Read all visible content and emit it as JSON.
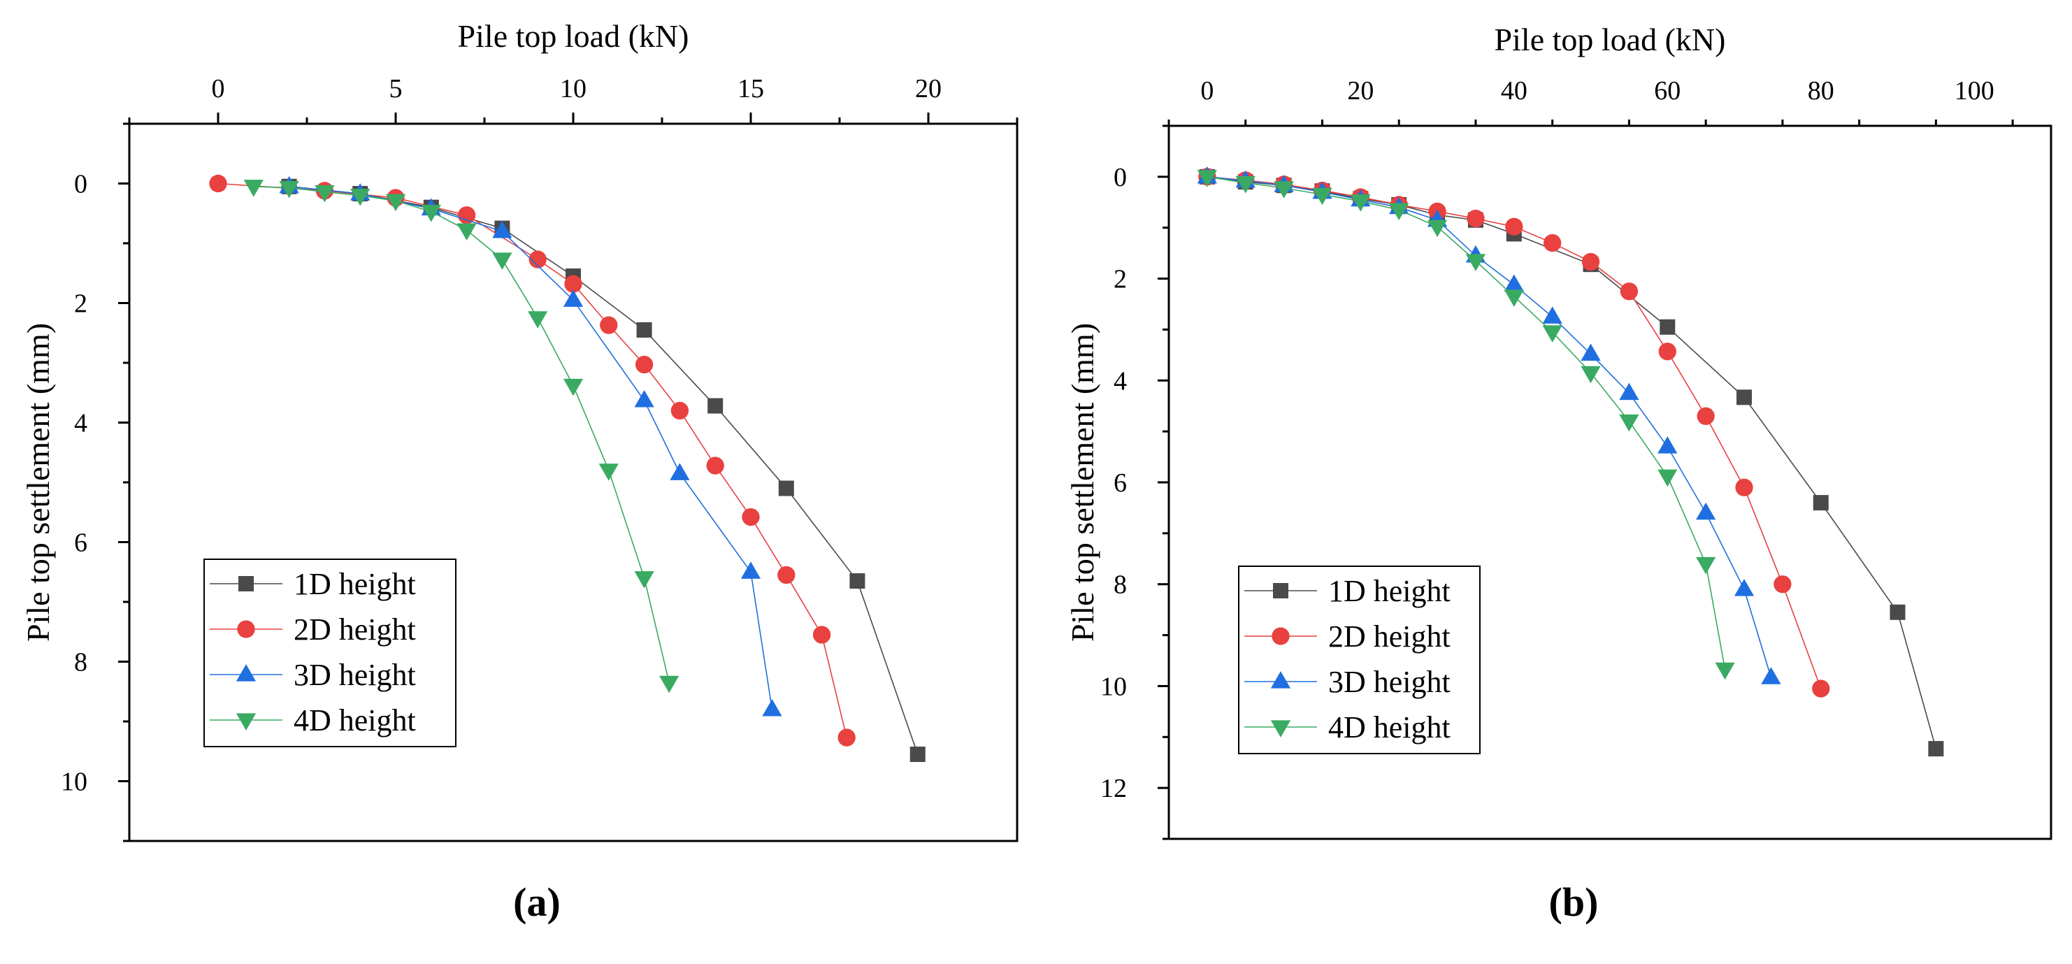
{
  "chart_data": [
    {
      "type": "line",
      "panel_label": "(a)",
      "xlabel": "Pile top load (kN)",
      "ylabel": "Pile top settlement (mm)",
      "xlim": [
        -2.5,
        22.5
      ],
      "ylim": [
        -1,
        11
      ],
      "x_ticks": [
        0,
        5,
        10,
        15,
        20
      ],
      "y_ticks": [
        0,
        2,
        4,
        6,
        8,
        10
      ],
      "x_axis_position": "top",
      "y_inverted": true,
      "grid": false,
      "legend_position": "bottom-left",
      "series": [
        {
          "name": "1D height",
          "color": "#4a4a4a",
          "marker": "square",
          "x": [
            2,
            4,
            6,
            8,
            10,
            12,
            14,
            16,
            18,
            19.7
          ],
          "y": [
            0.05,
            0.17,
            0.4,
            0.75,
            1.55,
            2.45,
            3.72,
            5.1,
            6.65,
            9.55
          ]
        },
        {
          "name": "2D height",
          "color": "#e8413f",
          "marker": "circle",
          "x": [
            0,
            3,
            5,
            7,
            9,
            10,
            11,
            12,
            13,
            14,
            15,
            16,
            17,
            17.7
          ],
          "y": [
            0,
            0.12,
            0.24,
            0.53,
            1.27,
            1.68,
            2.37,
            3.03,
            3.8,
            4.72,
            5.58,
            6.55,
            7.55,
            9.27
          ]
        },
        {
          "name": "3D height",
          "color": "#1f6fe0",
          "marker": "triangle-up",
          "x": [
            2,
            4,
            6,
            8,
            10,
            12,
            13,
            15,
            15.6
          ],
          "y": [
            0.05,
            0.17,
            0.42,
            0.8,
            1.95,
            3.63,
            4.85,
            6.5,
            8.8
          ]
        },
        {
          "name": "4D height",
          "color": "#3aaa62",
          "marker": "triangle-down",
          "x": [
            1,
            2,
            3,
            4,
            5,
            6,
            7,
            8,
            9,
            10,
            11,
            12,
            12.7
          ],
          "y": [
            0.05,
            0.07,
            0.14,
            0.2,
            0.29,
            0.47,
            0.78,
            1.27,
            2.25,
            3.38,
            4.8,
            6.6,
            8.35
          ]
        }
      ]
    },
    {
      "type": "line",
      "panel_label": "(b)",
      "xlabel": "Pile top load (kN)",
      "ylabel": "Pile top settlement (mm)",
      "xlim": [
        -5,
        110
      ],
      "ylim": [
        -1,
        13
      ],
      "x_ticks": [
        0,
        20,
        40,
        60,
        80,
        100
      ],
      "y_ticks": [
        0,
        2,
        4,
        6,
        8,
        10,
        12
      ],
      "x_axis_position": "top",
      "y_inverted": true,
      "grid": false,
      "legend_position": "bottom-left",
      "series": [
        {
          "name": "1D height",
          "color": "#4a4a4a",
          "marker": "square",
          "x": [
            0,
            5,
            10,
            15,
            20,
            25,
            30,
            35,
            40,
            50,
            60,
            70,
            80,
            90,
            95
          ],
          "y": [
            0,
            0.1,
            0.17,
            0.28,
            0.43,
            0.55,
            0.75,
            0.85,
            1.12,
            1.72,
            2.95,
            4.33,
            6.4,
            8.55,
            11.23
          ]
        },
        {
          "name": "2D height",
          "color": "#e8413f",
          "marker": "circle",
          "x": [
            0,
            5,
            10,
            15,
            20,
            25,
            30,
            35,
            40,
            45,
            50,
            55,
            60,
            65,
            70,
            75,
            80
          ],
          "y": [
            0,
            0.07,
            0.15,
            0.27,
            0.4,
            0.55,
            0.68,
            0.82,
            0.98,
            1.3,
            1.67,
            2.25,
            3.43,
            4.7,
            6.1,
            8.0,
            10.05
          ]
        },
        {
          "name": "3D height",
          "color": "#1f6fe0",
          "marker": "triangle-up",
          "x": [
            0,
            5,
            10,
            15,
            20,
            25,
            30,
            35,
            40,
            45,
            50,
            55,
            60,
            65,
            70,
            73.5
          ],
          "y": [
            0,
            0.08,
            0.17,
            0.3,
            0.45,
            0.6,
            0.85,
            1.55,
            2.12,
            2.75,
            3.48,
            4.25,
            5.3,
            6.6,
            8.1,
            9.83
          ]
        },
        {
          "name": "4D height",
          "color": "#3aaa62",
          "marker": "triangle-down",
          "x": [
            0,
            5,
            10,
            15,
            20,
            25,
            30,
            35,
            40,
            45,
            50,
            55,
            60,
            65,
            67.5
          ],
          "y": [
            0,
            0.12,
            0.22,
            0.35,
            0.48,
            0.65,
            0.98,
            1.65,
            2.35,
            3.05,
            3.85,
            4.8,
            5.88,
            7.6,
            9.67
          ]
        }
      ]
    }
  ]
}
